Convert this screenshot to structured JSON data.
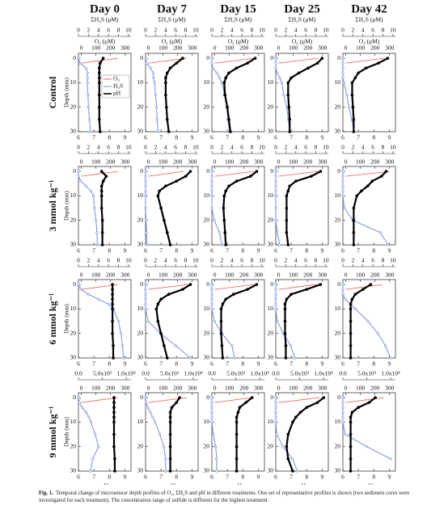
{
  "columns": [
    "Day 0",
    "Day 7",
    "Day 15",
    "Day 25",
    "Day 42"
  ],
  "rows": [
    "Control",
    "3 mmol kg⁻¹",
    "6 mmol kg⁻¹",
    "9 mmol kg⁻¹"
  ],
  "legend": [
    {
      "name": "O₂",
      "color": "#e8594f"
    },
    {
      "name": "H₂S",
      "color": "#7b8fe0"
    },
    {
      "name": "pH",
      "color": "#000000"
    }
  ],
  "axes": {
    "depth": {
      "label": "Depth (mm)",
      "ylim": [
        -2,
        30
      ],
      "yticks": [
        0,
        10,
        20,
        30
      ],
      "values": [
        0,
        2,
        4,
        6,
        8,
        10,
        15,
        20,
        25,
        30
      ]
    },
    "ph": {
      "label": "pH",
      "xlim": [
        6,
        9.4
      ],
      "xticks": [
        6,
        7,
        8,
        9
      ]
    },
    "o2": {
      "label": "O₂ (μM)",
      "xlim": [
        -20,
        340
      ],
      "xticks": [
        0,
        100,
        200,
        300
      ]
    },
    "h2s": {
      "label": "ΣH₂S (μM)",
      "xlim": [
        0,
        10.5
      ],
      "xticks": [
        0,
        2,
        4,
        6,
        8,
        10
      ]
    },
    "h2s_high": {
      "xlim": [
        0,
        11000
      ],
      "xticks": [
        {
          "value": 0,
          "label": "0.0"
        },
        {
          "value": 5000,
          "label": "5.0x10³"
        },
        {
          "value": 10000,
          "label": "1.0x10⁴"
        }
      ]
    }
  },
  "chart_data": [
    {
      "type": "line",
      "o2": [
        250,
        0,
        null,
        null,
        null,
        null,
        null,
        null,
        null,
        null
      ],
      "h2s": [
        0,
        0.3,
        1.5,
        1.8,
        1.8,
        1.8,
        1.9,
        2,
        2.2,
        2.4
      ],
      "ph": [
        7.6,
        7.4,
        7.35,
        7.35,
        7.35,
        7.35,
        7.35,
        7.35,
        7.35,
        7.4
      ]
    },
    {
      "type": "line",
      "o2": [
        260,
        0,
        null,
        null,
        null,
        null,
        null,
        null,
        null,
        null
      ],
      "h2s": [
        0,
        0.2,
        1,
        1.5,
        1.6,
        1.8,
        2,
        2.2,
        2.3,
        2.5
      ],
      "ph": [
        8.4,
        8.0,
        7.6,
        7.4,
        7.3,
        7.3,
        7.3,
        7.35,
        7.4,
        7.5
      ]
    },
    {
      "type": "line",
      "o2": [
        270,
        0,
        null,
        null,
        null,
        null,
        null,
        null,
        null,
        null
      ],
      "h2s": [
        0,
        0,
        0.2,
        1,
        1.5,
        2,
        2.5,
        3,
        3.2,
        3.5
      ],
      "ph": [
        8.8,
        8.3,
        7.6,
        7.1,
        6.9,
        6.8,
        6.85,
        7,
        7.1,
        7.2
      ]
    },
    {
      "type": "line",
      "o2": [
        270,
        0,
        null,
        null,
        null,
        null,
        null,
        null,
        null,
        null
      ],
      "h2s": [
        0,
        0,
        0,
        0.3,
        0.8,
        1.2,
        1.6,
        2.2,
        2.5,
        2.8
      ],
      "ph": [
        9,
        8.7,
        8.1,
        7.5,
        7.0,
        6.8,
        6.8,
        6.85,
        6.9,
        6.9
      ]
    },
    {
      "type": "line",
      "o2": [
        260,
        0,
        null,
        null,
        null,
        null,
        null,
        null,
        null,
        null
      ],
      "h2s": [
        0,
        0,
        0,
        0,
        0,
        0.2,
        0.8,
        1.2,
        1.8,
        2.2
      ],
      "ph": [
        8.9,
        8.3,
        7.5,
        7.0,
        6.8,
        6.6,
        6.6,
        6.65,
        6.7,
        6.7
      ]
    },
    {
      "type": "line",
      "o2": [
        250,
        0,
        null,
        null,
        null,
        null,
        null,
        null,
        null,
        null
      ],
      "h2s": [
        0,
        0,
        0.5,
        1.5,
        2.5,
        3,
        3.2,
        3.5,
        3.7,
        3.8
      ],
      "ph": [
        7.5,
        7.8,
        7.6,
        7.5,
        7.5,
        7.5,
        7.5,
        7.55,
        7.55,
        7.55
      ]
    },
    {
      "type": "line",
      "o2": [
        240,
        0,
        null,
        null,
        null,
        null,
        null,
        null,
        null,
        null
      ],
      "h2s": [
        0,
        0,
        0,
        0,
        0,
        0,
        0,
        0.1,
        0.2,
        0.3
      ],
      "ph": [
        8.9,
        8.6,
        8.0,
        7.3,
        6.9,
        6.8,
        7,
        7.2,
        7.4,
        7.6
      ]
    },
    {
      "type": "line",
      "o2": [
        270,
        0,
        null,
        null,
        null,
        null,
        null,
        null,
        null,
        null
      ],
      "h2s": [
        0,
        0,
        0,
        0,
        0,
        0,
        0,
        0.5,
        1.5,
        2.0
      ],
      "ph": [
        8.9,
        8.5,
        7.6,
        7.1,
        6.9,
        6.8,
        6.75,
        6.8,
        6.85,
        6.9
      ]
    },
    {
      "type": "line",
      "o2": [
        270,
        0,
        null,
        null,
        null,
        null,
        null,
        null,
        null,
        null
      ],
      "h2s": [
        0,
        0,
        0,
        0,
        0,
        0,
        0,
        0,
        0.3,
        0.8
      ],
      "ph": [
        8.9,
        8.3,
        7.3,
        6.9,
        6.8,
        6.7,
        6.7,
        6.7,
        6.7,
        6.8
      ]
    },
    {
      "type": "line",
      "o2": [
        300,
        0,
        null,
        null,
        null,
        null,
        null,
        null,
        null,
        null
      ],
      "h2s": [
        0,
        0,
        0,
        0,
        0,
        0,
        0.3,
        2,
        7.5,
        9
      ],
      "ph": [
        8.8,
        8.5,
        7.9,
        7.6,
        7.2,
        6.9,
        6.7,
        6.7,
        6.7,
        6.7
      ]
    },
    {
      "type": "line",
      "o2": [
        250,
        0,
        null,
        null,
        null,
        null,
        null,
        null,
        null,
        null
      ],
      "h2s": [
        0,
        0.5,
        2,
        4,
        6,
        7,
        8,
        8.5,
        8.8,
        9
      ],
      "ph": [
        8.2,
        8.2,
        8.2,
        8.2,
        8.2,
        8.2,
        8.2,
        8.2,
        8.25,
        8.25
      ]
    },
    {
      "type": "line",
      "o2": [
        270,
        0,
        null,
        null,
        null,
        null,
        null,
        null,
        null,
        null
      ],
      "h2s": [
        0,
        0,
        0,
        0,
        0,
        0,
        0.5,
        3,
        6,
        9
      ],
      "ph": [
        8.9,
        8.4,
        7.5,
        7.0,
        6.8,
        6.7,
        6.8,
        7.0,
        7.2,
        7.4
      ]
    },
    {
      "type": "line",
      "o2": [
        270,
        0,
        null,
        null,
        null,
        null,
        null,
        null,
        null,
        null
      ],
      "h2s": [
        0,
        0,
        0,
        0,
        0,
        0,
        0.5,
        2,
        4,
        4.5
      ],
      "ph": [
        8.9,
        8.3,
        7.4,
        6.9,
        6.7,
        6.6,
        6.6,
        6.6,
        6.65,
        6.7
      ]
    },
    {
      "type": "line",
      "o2": [
        260,
        0,
        null,
        null,
        null,
        null,
        null,
        null,
        null,
        null
      ],
      "h2s": [
        0,
        0,
        0,
        0,
        0,
        0,
        0.3,
        1.5,
        3,
        3.8
      ],
      "ph": [
        8.9,
        8.0,
        7.0,
        6.7,
        6.6,
        6.6,
        6.6,
        6.6,
        6.65,
        6.65
      ]
    },
    {
      "type": "line",
      "o2": [
        250,
        0,
        null,
        null,
        null,
        null,
        null,
        null,
        null,
        null
      ],
      "h2s": [
        0,
        0,
        0,
        0.5,
        1.5,
        2.5,
        5,
        7,
        8.5,
        9.5
      ],
      "ph": [
        7.8,
        7.3,
        6.8,
        6.6,
        6.5,
        6.5,
        6.5,
        6.5,
        6.5,
        6.5
      ]
    },
    {
      "type": "line",
      "o2": [
        250,
        0,
        null,
        null,
        null,
        null,
        null,
        null,
        null,
        null
      ],
      "h2s": [
        0,
        200,
        800,
        1600,
        2200,
        2600,
        3500,
        4200,
        3000,
        2500
      ],
      "ph": [
        8.3,
        8.3,
        8.3,
        8.3,
        8.3,
        8.3,
        8.3,
        8.3,
        8.35,
        8.35
      ]
    },
    {
      "type": "line",
      "o2": [
        260,
        0,
        null,
        null,
        null,
        null,
        null,
        null,
        null,
        null
      ],
      "h2s": [
        0,
        100,
        500,
        1000,
        1500,
        2000,
        3000,
        3800,
        4200,
        4200
      ],
      "ph": [
        8.2,
        8.0,
        7.7,
        7.6,
        7.6,
        7.6,
        7.6,
        7.6,
        7.6,
        7.6
      ]
    },
    {
      "type": "line",
      "o2": [
        250,
        0,
        null,
        null,
        null,
        null,
        null,
        null,
        null,
        null
      ],
      "h2s": [
        0,
        0,
        0,
        0,
        0,
        0,
        300,
        800,
        1000,
        1000
      ],
      "ph": [
        8.6,
        8.2,
        7.8,
        7.7,
        7.6,
        7.6,
        7.6,
        7.6,
        7.6,
        7.6
      ]
    },
    {
      "type": "line",
      "o2": [
        280,
        0,
        null,
        null,
        null,
        null,
        null,
        null,
        null,
        null
      ],
      "h2s": [
        0,
        0,
        0,
        0,
        0,
        0,
        200,
        1500,
        3500,
        4500
      ],
      "ph": [
        9.1,
        8.7,
        8.0,
        7.6,
        7.3,
        7.1,
        6.8,
        6.7,
        6.8,
        7.1
      ]
    },
    {
      "type": "line",
      "o2": [
        260,
        0,
        null,
        null,
        null,
        null,
        null,
        null,
        null,
        null
      ],
      "h2s": [
        0,
        0,
        0,
        0,
        0,
        0,
        500,
        5000,
        10000,
        null
      ],
      "ph": [
        8.1,
        7.7,
        7.0,
        6.6,
        6.5,
        6.5,
        6.5,
        6.5,
        6.5,
        6.5
      ]
    }
  ],
  "caption": {
    "label": "Fig. 1.",
    "text": "Temporal change of microsensor depth profiles of O₂, ΣH₂S and pH in different treatments. One set of representative profiles is shown (two sediment cores were investigated for each treatment). The concentration range of sulfide is different for the highest treatment."
  }
}
